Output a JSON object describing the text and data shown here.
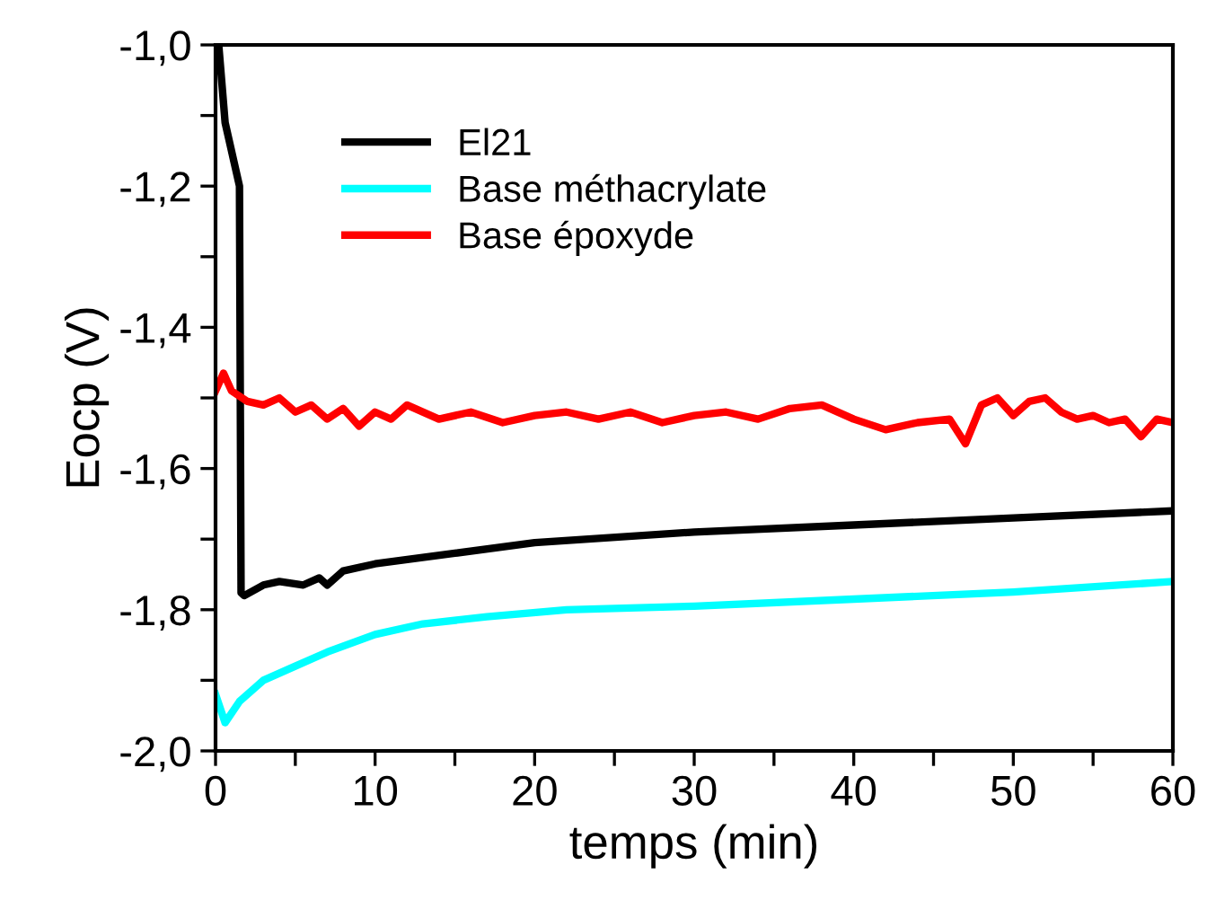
{
  "chart_data": {
    "type": "line",
    "xlabel": "temps (min)",
    "ylabel": "Eocp (V)",
    "xlim": [
      0,
      60
    ],
    "ylim": [
      -2.0,
      -1.0
    ],
    "xticks": [
      0,
      {
        "value": 5,
        "label": null
      },
      10,
      {
        "value": 15,
        "label": null
      },
      20,
      {
        "value": 25,
        "label": null
      },
      30,
      {
        "value": 35,
        "label": null
      },
      40,
      {
        "value": 45,
        "label": null
      },
      50,
      {
        "value": 55,
        "label": null
      },
      60
    ],
    "yticks": [
      {
        "value": -2.0,
        "label": "-2,0"
      },
      {
        "value": -1.9,
        "label": null
      },
      {
        "value": -1.8,
        "label": "-1,8"
      },
      {
        "value": -1.7,
        "label": null
      },
      {
        "value": -1.6,
        "label": "-1,6"
      },
      {
        "value": -1.5,
        "label": null
      },
      {
        "value": -1.4,
        "label": "-1,4"
      },
      {
        "value": -1.3,
        "label": null
      },
      {
        "value": -1.2,
        "label": "-1,2"
      },
      {
        "value": -1.1,
        "label": null
      },
      {
        "value": -1.0,
        "label": "-1,0"
      }
    ],
    "legend": "top left",
    "grid": false,
    "line_style": "solid",
    "series": [
      {
        "name": "El21",
        "color": "#000000",
        "x": [
          0.2,
          0.6,
          1.5,
          1.6,
          1.8,
          3,
          4,
          5.5,
          6.5,
          7,
          8,
          10,
          15,
          20,
          30,
          40,
          50,
          60
        ],
        "values": [
          -1.0,
          -1.11,
          -1.2,
          -1.776,
          -1.78,
          -1.765,
          -1.76,
          -1.765,
          -1.755,
          -1.765,
          -1.745,
          -1.735,
          -1.72,
          -1.705,
          -1.69,
          -1.68,
          -1.67,
          -1.66
        ]
      },
      {
        "name": "Base méthacrylate",
        "color": "#00ffff",
        "x": [
          0,
          0.6,
          1.5,
          3,
          5,
          7,
          10,
          13,
          17,
          22,
          30,
          40,
          50,
          60
        ],
        "values": [
          -1.92,
          -1.96,
          -1.93,
          -1.9,
          -1.88,
          -1.86,
          -1.835,
          -1.82,
          -1.81,
          -1.8,
          -1.795,
          -1.785,
          -1.775,
          -1.76
        ]
      },
      {
        "name": "Base époxyde",
        "color": "#ff0000",
        "x": [
          0,
          0.5,
          1,
          2,
          3,
          4,
          5,
          6,
          7,
          8,
          9,
          10,
          11,
          12,
          14,
          16,
          18,
          20,
          22,
          24,
          26,
          28,
          30,
          32,
          34,
          36,
          38,
          40,
          42,
          44,
          46,
          47,
          48,
          49,
          50,
          51,
          52,
          53,
          54,
          55,
          56,
          57,
          58,
          59,
          60
        ],
        "values": [
          -1.49,
          -1.465,
          -1.49,
          -1.505,
          -1.51,
          -1.5,
          -1.52,
          -1.51,
          -1.53,
          -1.515,
          -1.54,
          -1.52,
          -1.53,
          -1.51,
          -1.53,
          -1.52,
          -1.535,
          -1.525,
          -1.52,
          -1.53,
          -1.52,
          -1.535,
          -1.525,
          -1.52,
          -1.53,
          -1.515,
          -1.51,
          -1.53,
          -1.545,
          -1.535,
          -1.53,
          -1.565,
          -1.51,
          -1.5,
          -1.525,
          -1.505,
          -1.5,
          -1.52,
          -1.53,
          -1.525,
          -1.535,
          -1.53,
          -1.555,
          -1.53,
          -1.535
        ]
      }
    ]
  }
}
